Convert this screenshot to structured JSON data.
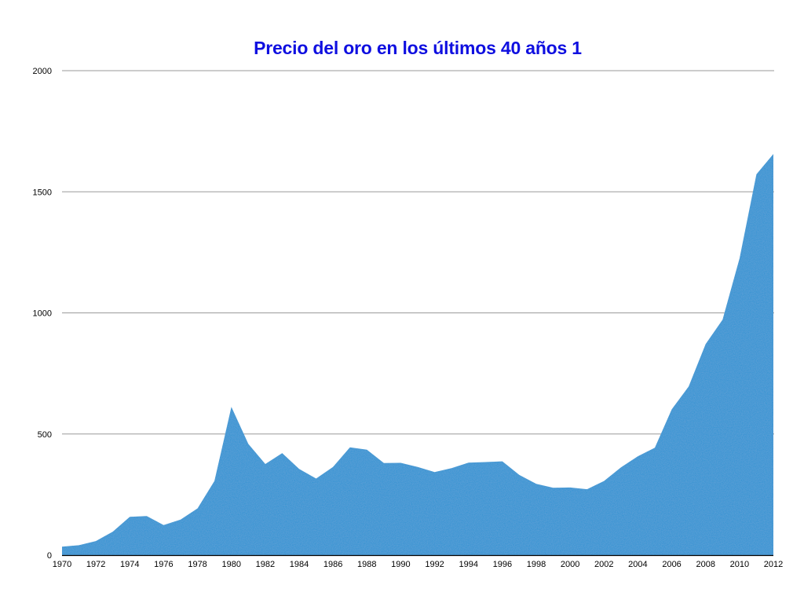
{
  "chart_data": {
    "type": "area",
    "title": "Precio del oro en los últimos 40 años 1",
    "xlabel": "",
    "ylabel": "",
    "x": [
      1970,
      1971,
      1972,
      1973,
      1974,
      1975,
      1976,
      1977,
      1978,
      1979,
      1980,
      1981,
      1982,
      1983,
      1984,
      1985,
      1986,
      1987,
      1988,
      1989,
      1990,
      1991,
      1992,
      1993,
      1994,
      1995,
      1996,
      1997,
      1998,
      1999,
      2000,
      2001,
      2002,
      2003,
      2004,
      2005,
      2006,
      2007,
      2008,
      2009,
      2010,
      2011,
      2012
    ],
    "series": [
      {
        "name": "Precio del oro",
        "values": [
          35,
          41,
          58,
          97,
          158,
          161,
          124,
          147,
          193,
          306,
          612,
          459,
          376,
          421,
          356,
          316,
          364,
          445,
          435,
          380,
          381,
          364,
          343,
          359,
          382,
          384,
          387,
          331,
          294,
          278,
          279,
          272,
          306,
          362,
          408,
          443,
          602,
          696,
          871,
          972,
          1225,
          1572,
          1656
        ],
        "color": "#2a92d2"
      }
    ],
    "xticks": [
      1970,
      1972,
      1974,
      1976,
      1978,
      1980,
      1982,
      1984,
      1986,
      1988,
      1990,
      1992,
      1994,
      1996,
      1998,
      2000,
      2002,
      2004,
      2006,
      2008,
      2010,
      2012
    ],
    "yticks": [
      0,
      500,
      1000,
      1500,
      2000
    ],
    "xlim": [
      1970,
      2012
    ],
    "ylim": [
      0,
      2000
    ],
    "grid": true,
    "legend": null
  },
  "colors": {
    "title": "#0f0fe0",
    "area_fill": "#2a92d2",
    "gridline": "#9a9a9a",
    "axis": "#000000"
  }
}
